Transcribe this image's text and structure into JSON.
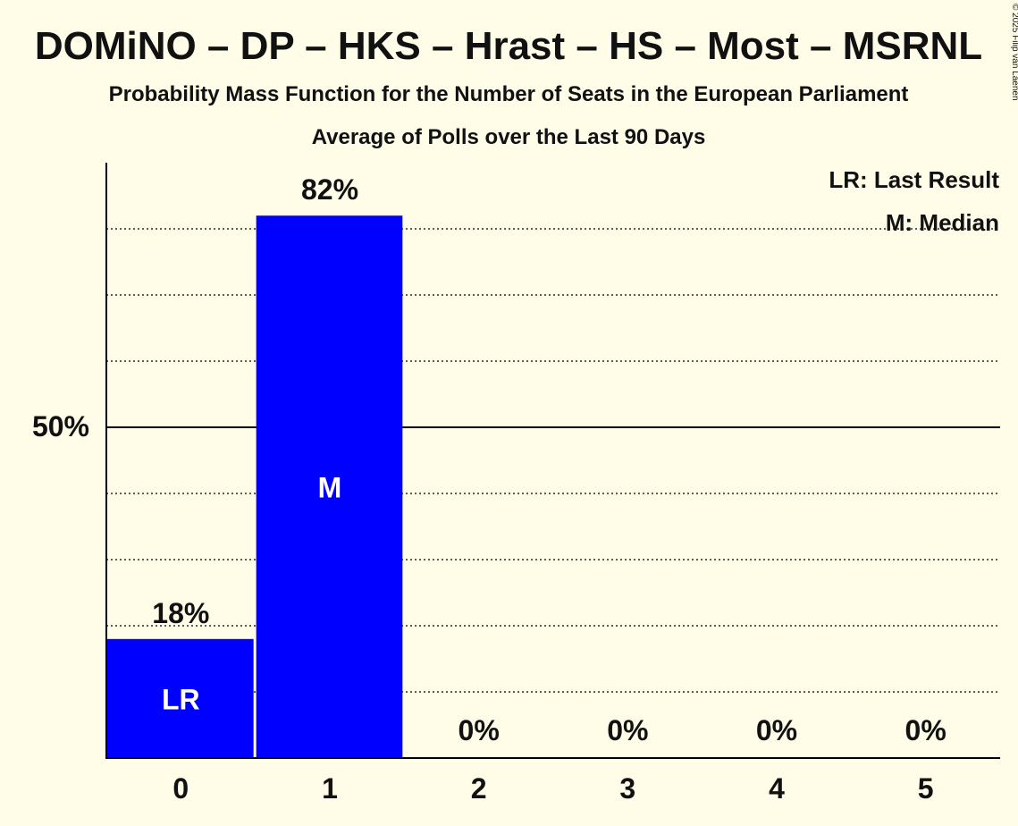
{
  "chart_data": {
    "type": "bar",
    "title": "DOMiNO – DP – HKS – Hrast – HS – Most – MSRNL",
    "subtitle": "Probability Mass Function for the Number of Seats in the European Parliament",
    "subtitle2": "Average of Polls over the Last 90 Days",
    "copyright": "© 2025 Filip van Laenen",
    "categories": [
      "0",
      "1",
      "2",
      "3",
      "4",
      "5"
    ],
    "values": [
      18,
      82,
      0,
      0,
      0,
      0
    ],
    "value_labels": [
      "18%",
      "82%",
      "0%",
      "0%",
      "0%",
      "0%"
    ],
    "bar_marks": [
      "LR",
      "M",
      "",
      "",
      "",
      ""
    ],
    "ylim": [
      0,
      90
    ],
    "ytick_value": 50,
    "ytick_label": "50%",
    "gridlines": [
      10,
      20,
      30,
      40,
      60,
      70,
      80
    ],
    "grid": true,
    "legend": {
      "placement": "top-right",
      "items": [
        "LR: Last Result",
        "M: Median"
      ]
    },
    "colors": {
      "bar": "#0000FF",
      "background": "#FFFDE8",
      "text": "#111111",
      "bar_mark_text": "#FFFFFF"
    }
  }
}
